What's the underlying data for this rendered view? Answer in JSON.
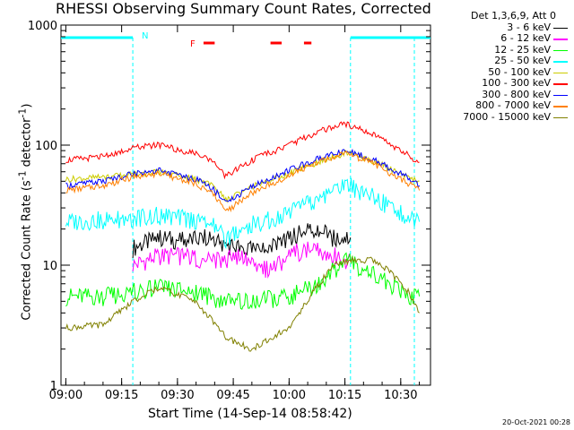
{
  "header": {
    "title": "RHESSI Observing Summary Count Rates, Corrected",
    "timestamp": "20-Oct-2021 00:28"
  },
  "legend": {
    "heading": "Det 1,3,6,9, Att 0",
    "items": [
      {
        "label": "3 - 6 keV",
        "color": "#000000"
      },
      {
        "label": "6 - 12 keV",
        "color": "#ff00ff"
      },
      {
        "label": "12 - 25 keV",
        "color": "#00ff00"
      },
      {
        "label": "25 - 50 keV",
        "color": "#00ffff"
      },
      {
        "label": "50 - 100 keV",
        "color": "#cccc00"
      },
      {
        "label": "100 - 300 keV",
        "color": "#ff0000"
      },
      {
        "label": "300 - 800 keV",
        "color": "#0000ff"
      },
      {
        "label": "800 - 7000 keV",
        "color": "#ff8000"
      },
      {
        "label": "7000 - 15000 keV",
        "color": "#808000"
      }
    ]
  },
  "flags": {
    "night_label": "N",
    "flare_label": "F",
    "night_color": "#00ffff",
    "flare_color": "#ff0000"
  },
  "chart_data": {
    "type": "line",
    "title": "RHESSI Observing Summary Count Rates, Corrected",
    "xlabel": "Start Time (14-Sep-14 08:58:42)",
    "ylabel": "Corrected Count Rate (s⁻¹ detector⁻¹)",
    "y_scale": "log",
    "ylim": [
      1,
      1000
    ],
    "xlim": [
      "08:58:42",
      "10:38:00"
    ],
    "x_ticks": [
      "09:00",
      "09:15",
      "09:30",
      "09:45",
      "10:00",
      "10:15",
      "10:30"
    ],
    "y_ticks": [
      "1",
      "10",
      "100",
      "1000"
    ],
    "night_intervals": [
      [
        "08:58:42",
        "09:18:00"
      ],
      [
        "10:16:30",
        "10:38:00"
      ]
    ],
    "flare_intervals": [
      [
        "09:37:00",
        "09:40:00"
      ],
      [
        "09:55:00",
        "09:58:00"
      ],
      [
        "10:04:00",
        "10:06:00"
      ]
    ],
    "series": [
      {
        "name": "3 - 6 keV",
        "color": "#000000",
        "x": [
          "09:18:00",
          "09:25:00",
          "09:32:00",
          "09:38:00",
          "09:42:00",
          "09:47:00",
          "09:52:00",
          "09:57:00",
          "10:02:00",
          "10:07:00",
          "10:12:00",
          "10:16:30"
        ],
        "y": [
          14,
          17,
          16,
          17,
          15,
          14,
          13,
          15,
          18,
          20,
          17,
          17
        ]
      },
      {
        "name": "6 - 12 keV",
        "color": "#ff00ff",
        "x": [
          "09:18:00",
          "09:25:00",
          "09:32:00",
          "09:38:00",
          "09:42:00",
          "09:47:00",
          "09:52:00",
          "09:57:00",
          "10:02:00",
          "10:07:00",
          "10:12:00",
          "10:16:30"
        ],
        "y": [
          10,
          12,
          12,
          11,
          11,
          12,
          9,
          10,
          13,
          14,
          12,
          11
        ]
      },
      {
        "name": "12 - 25 keV",
        "color": "#00ff00",
        "x": [
          "09:00:00",
          "09:10:00",
          "09:18:00",
          "09:25:00",
          "09:35:00",
          "09:43:00",
          "09:50:00",
          "10:00:00",
          "10:08:00",
          "10:15:00",
          "10:22:00",
          "10:30:00",
          "10:35:00"
        ],
        "y": [
          5.5,
          5.5,
          6,
          6.5,
          6,
          5,
          5,
          5.5,
          7,
          11,
          9,
          6,
          5.5
        ]
      },
      {
        "name": "25 - 50 keV",
        "color": "#00ffff",
        "x": [
          "09:00:00",
          "09:10:00",
          "09:18:00",
          "09:25:00",
          "09:35:00",
          "09:40:00",
          "09:43:00",
          "09:50:00",
          "10:00:00",
          "10:08:00",
          "10:15:00",
          "10:22:00",
          "10:30:00",
          "10:35:00"
        ],
        "y": [
          23,
          24,
          25,
          26,
          24,
          21,
          17,
          22,
          27,
          36,
          48,
          38,
          28,
          23
        ]
      },
      {
        "name": "50 - 100 keV",
        "color": "#cccc00",
        "x": [
          "09:00:00",
          "09:10:00",
          "09:18:00",
          "09:25:00",
          "09:35:00",
          "09:40:00",
          "09:43:00",
          "09:50:00",
          "10:00:00",
          "10:08:00",
          "10:15:00",
          "10:22:00",
          "10:30:00",
          "10:35:00"
        ],
        "y": [
          52,
          54,
          57,
          60,
          52,
          45,
          35,
          45,
          58,
          72,
          86,
          75,
          58,
          50
        ]
      },
      {
        "name": "100 - 300 keV",
        "color": "#ff0000",
        "x": [
          "09:00:00",
          "09:10:00",
          "09:18:00",
          "09:25:00",
          "09:35:00",
          "09:40:00",
          "09:43:00",
          "09:50:00",
          "10:00:00",
          "10:08:00",
          "10:15:00",
          "10:22:00",
          "10:30:00",
          "10:35:00"
        ],
        "y": [
          75,
          80,
          95,
          100,
          85,
          70,
          55,
          75,
          100,
          130,
          150,
          125,
          90,
          72
        ]
      },
      {
        "name": "300 - 800 keV",
        "color": "#0000ff",
        "x": [
          "09:00:00",
          "09:10:00",
          "09:18:00",
          "09:25:00",
          "09:35:00",
          "09:40:00",
          "09:43:00",
          "09:50:00",
          "10:00:00",
          "10:08:00",
          "10:15:00",
          "10:22:00",
          "10:30:00",
          "10:35:00"
        ],
        "y": [
          46,
          50,
          58,
          62,
          52,
          42,
          33,
          45,
          62,
          78,
          90,
          78,
          58,
          46
        ]
      },
      {
        "name": "800 - 7000 keV",
        "color": "#ff8000",
        "x": [
          "09:00:00",
          "09:10:00",
          "09:18:00",
          "09:25:00",
          "09:35:00",
          "09:40:00",
          "09:43:00",
          "09:50:00",
          "10:00:00",
          "10:08:00",
          "10:15:00",
          "10:22:00",
          "10:30:00",
          "10:35:00"
        ],
        "y": [
          42,
          46,
          54,
          58,
          48,
          38,
          28,
          40,
          56,
          72,
          85,
          72,
          52,
          42
        ]
      },
      {
        "name": "7000 - 15000 keV",
        "color": "#808000",
        "x": [
          "09:00:00",
          "09:10:00",
          "09:18:00",
          "09:25:00",
          "09:35:00",
          "09:43:00",
          "09:50:00",
          "10:00:00",
          "10:08:00",
          "10:12:00",
          "10:17:00",
          "10:22:00",
          "10:27:00",
          "10:32:00",
          "10:35:00"
        ],
        "y": [
          3,
          3.2,
          5,
          6.5,
          5,
          2.5,
          2,
          3,
          7,
          10,
          11,
          11,
          9,
          6,
          4
        ]
      }
    ]
  }
}
